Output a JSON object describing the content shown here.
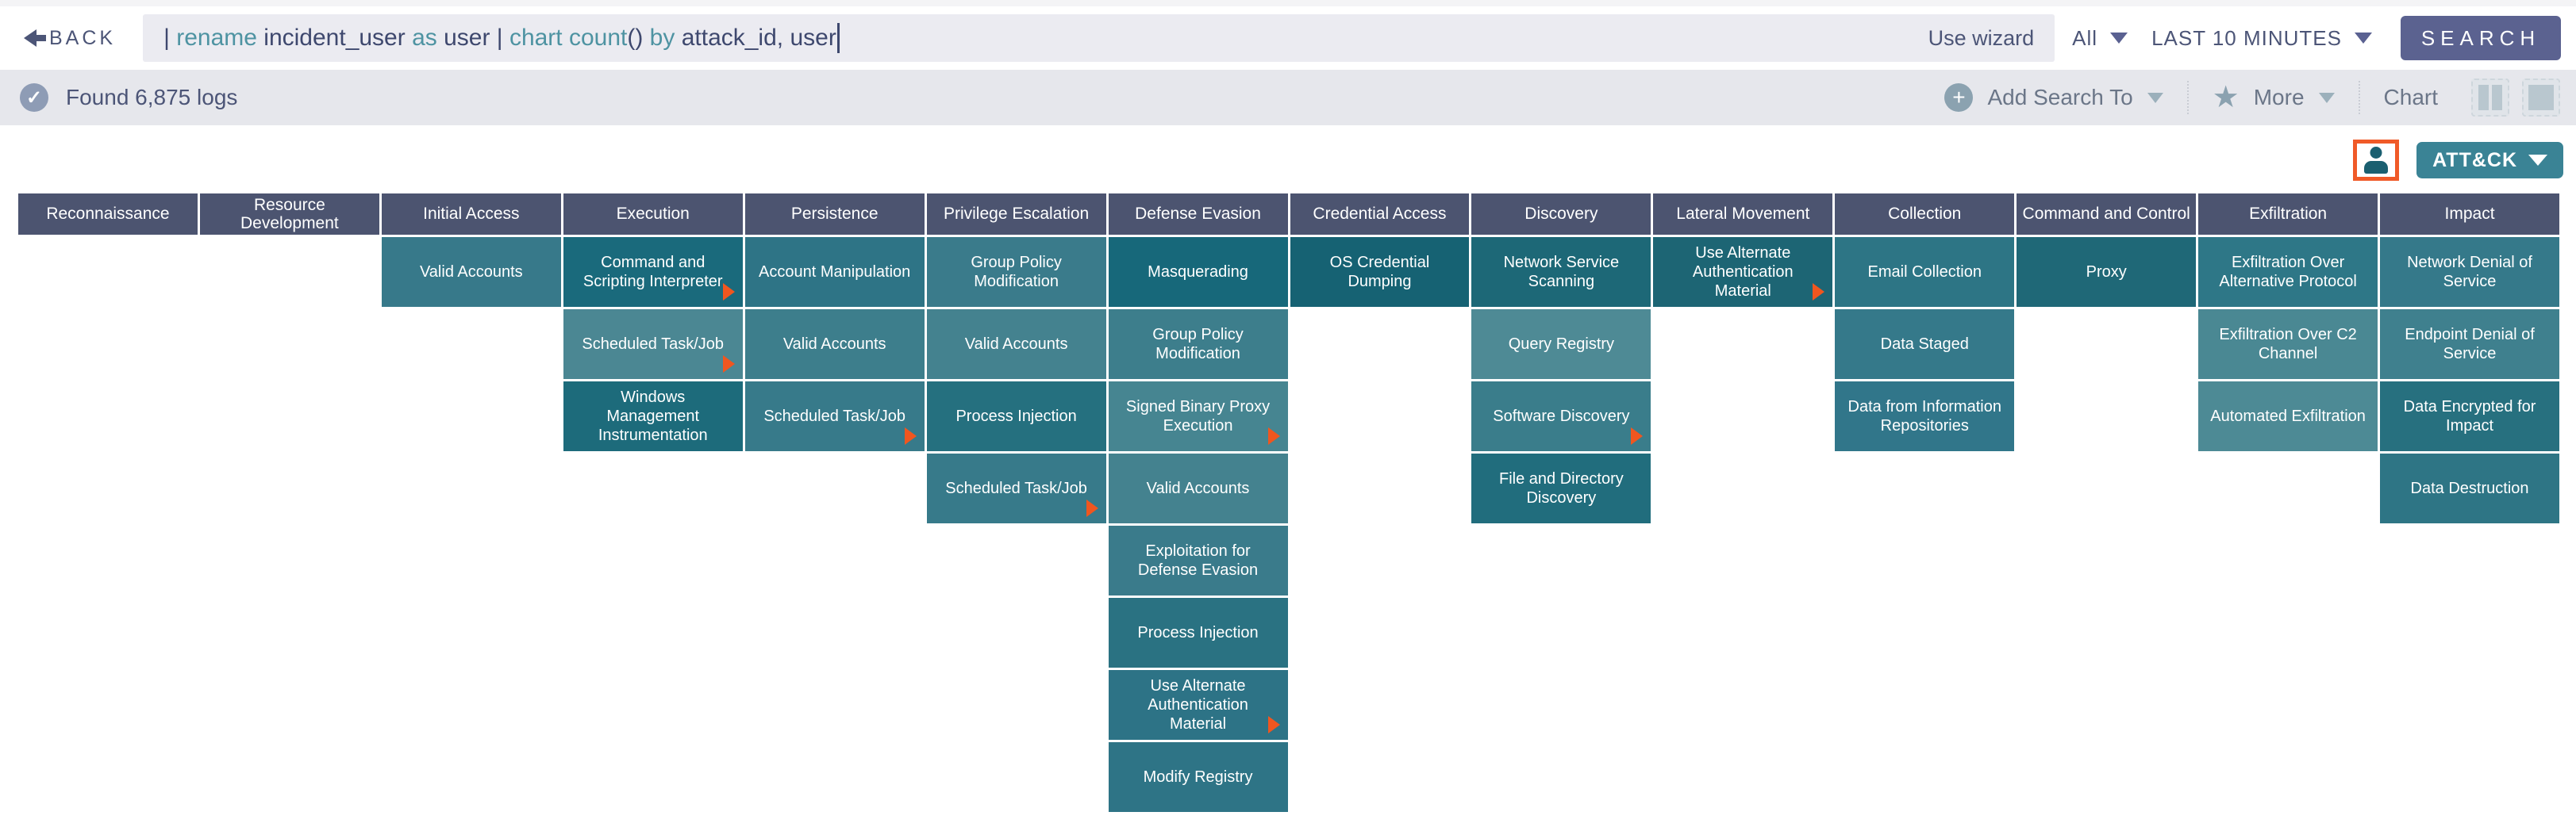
{
  "topbar": {
    "back_label": "BACK",
    "query_tokens": [
      {
        "text": "| ",
        "kind": "plain"
      },
      {
        "text": "rename",
        "kind": "keyword"
      },
      {
        "text": " incident_user ",
        "kind": "plain"
      },
      {
        "text": "as",
        "kind": "keyword"
      },
      {
        "text": " user ",
        "kind": "plain"
      },
      {
        "text": "| ",
        "kind": "plain"
      },
      {
        "text": "chart count",
        "kind": "keyword"
      },
      {
        "text": "()",
        "kind": "plain"
      },
      {
        "text": " by",
        "kind": "keyword"
      },
      {
        "text": " attack_id, user",
        "kind": "plain"
      }
    ],
    "use_wizard_label": "Use wizard",
    "repo_selected": "All",
    "time_range": "LAST 10 MINUTES",
    "search_label": "SEARCH"
  },
  "results_bar": {
    "status_text": "Found 6,875 logs",
    "add_search_to_label": "Add Search To",
    "more_label": "More",
    "chart_label": "Chart"
  },
  "matrix_toolbar": {
    "attack_button_label": "ATT&CK"
  },
  "icons": {
    "back": "arrow-left",
    "status": "check-circle",
    "add_search_to": "plus-circle",
    "more": "star",
    "chart_views": [
      "column-chart",
      "filled-square"
    ],
    "user": "person-silhouette",
    "technique_expand": "orange-right-triangle"
  },
  "colors": {
    "accent_orange": "#f05a28",
    "attack_button_teal": "#3a8395",
    "header_slate": "#4c5470",
    "search_button": "#5b6290",
    "keyword_teal": "#4e93a2",
    "query_navy": "#3e486e"
  },
  "attack_matrix": {
    "tactics": [
      {
        "name": "Reconnaissance",
        "techniques": []
      },
      {
        "name": "Resource Development",
        "techniques": []
      },
      {
        "name": "Initial Access",
        "techniques": [
          {
            "name": "Valid Accounts",
            "color": "#37798a",
            "has_subtechniques": false
          }
        ]
      },
      {
        "name": "Execution",
        "techniques": [
          {
            "name": "Command and Scripting Interpreter",
            "color": "#1a6a7c",
            "has_subtechniques": true
          },
          {
            "name": "Scheduled Task/Job",
            "color": "#4b8793",
            "has_subtechniques": true
          },
          {
            "name": "Windows Management Instrumentation",
            "color": "#1d6b7b",
            "has_subtechniques": false
          }
        ]
      },
      {
        "name": "Persistence",
        "techniques": [
          {
            "name": "Account Manipulation",
            "color": "#2e7486",
            "has_subtechniques": false
          },
          {
            "name": "Valid Accounts",
            "color": "#3d7e8c",
            "has_subtechniques": false
          },
          {
            "name": "Scheduled Task/Job",
            "color": "#377a8a",
            "has_subtechniques": true
          }
        ]
      },
      {
        "name": "Privilege Escalation",
        "techniques": [
          {
            "name": "Group Policy Modification",
            "color": "#3a7b8b",
            "has_subtechniques": false
          },
          {
            "name": "Valid Accounts",
            "color": "#44828f",
            "has_subtechniques": false
          },
          {
            "name": "Process Injection",
            "color": "#25707f",
            "has_subtechniques": false
          },
          {
            "name": "Scheduled Task/Job",
            "color": "#377a8a",
            "has_subtechniques": true
          }
        ]
      },
      {
        "name": "Defense Evasion",
        "techniques": [
          {
            "name": "Masquerading",
            "color": "#17687a",
            "has_subtechniques": false
          },
          {
            "name": "Group Policy Modification",
            "color": "#3d7e8c",
            "has_subtechniques": false
          },
          {
            "name": "Signed Binary Proxy Execution",
            "color": "#468591",
            "has_subtechniques": true
          },
          {
            "name": "Valid Accounts",
            "color": "#44828f",
            "has_subtechniques": false
          },
          {
            "name": "Exploitation for Defense Evasion",
            "color": "#3a7b8b",
            "has_subtechniques": false
          },
          {
            "name": "Process Injection",
            "color": "#2a7282",
            "has_subtechniques": false
          },
          {
            "name": "Use Alternate Authentication Material",
            "color": "#2d7386",
            "has_subtechniques": true
          },
          {
            "name": "Modify Registry",
            "color": "#2e7486",
            "has_subtechniques": false
          }
        ]
      },
      {
        "name": "Credential Access",
        "techniques": [
          {
            "name": "OS Credential Dumping",
            "color": "#166273",
            "has_subtechniques": false
          }
        ]
      },
      {
        "name": "Discovery",
        "techniques": [
          {
            "name": "Network Service Scanning",
            "color": "#1d6877",
            "has_subtechniques": false
          },
          {
            "name": "Query Registry",
            "color": "#4e8a95",
            "has_subtechniques": false
          },
          {
            "name": "Software Discovery",
            "color": "#3a7d8b",
            "has_subtechniques": true
          },
          {
            "name": "File and Directory Discovery",
            "color": "#216d7d",
            "has_subtechniques": false
          }
        ]
      },
      {
        "name": "Lateral Movement",
        "techniques": [
          {
            "name": "Use Alternate Authentication Material",
            "color": "#1d6574",
            "has_subtechniques": true
          }
        ]
      },
      {
        "name": "Collection",
        "techniques": [
          {
            "name": "Email Collection",
            "color": "#2d7585",
            "has_subtechniques": false
          },
          {
            "name": "Data Staged",
            "color": "#35798a",
            "has_subtechniques": false
          },
          {
            "name": "Data from Information Repositories",
            "color": "#31768a",
            "has_subtechniques": false
          }
        ]
      },
      {
        "name": "Command and Control",
        "techniques": [
          {
            "name": "Proxy",
            "color": "#1f6877",
            "has_subtechniques": false
          }
        ]
      },
      {
        "name": "Exfiltration",
        "techniques": [
          {
            "name": "Exfiltration Over Alternative Protocol",
            "color": "#2e7787",
            "has_subtechniques": false
          },
          {
            "name": "Exfiltration Over C2 Channel",
            "color": "#4a8893",
            "has_subtechniques": false
          },
          {
            "name": "Automated Exfiltration",
            "color": "#4d8a95",
            "has_subtechniques": false
          }
        ]
      },
      {
        "name": "Impact",
        "techniques": [
          {
            "name": "Network Denial of Service",
            "color": "#35798a",
            "has_subtechniques": false
          },
          {
            "name": "Endpoint Denial of Service",
            "color": "#3f808e",
            "has_subtechniques": false
          },
          {
            "name": "Data Encrypted for Impact",
            "color": "#27707f",
            "has_subtechniques": false
          },
          {
            "name": "Data Destruction",
            "color": "#2e7585",
            "has_subtechniques": false
          }
        ]
      }
    ]
  }
}
